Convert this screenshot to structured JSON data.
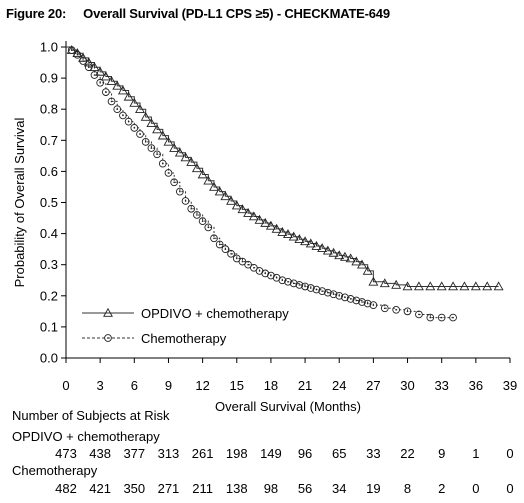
{
  "figure": {
    "title": "Figure 20:     Overall Survival (PD-L1 CPS ≥5) - CHECKMATE-649"
  },
  "chart_data": {
    "type": "line",
    "subtype": "kaplan-meier",
    "xlabel": "Overall Survival (Months)",
    "ylabel": "Probability of Overall Survival",
    "xlim": [
      0,
      39
    ],
    "ylim": [
      0,
      1.0
    ],
    "x_ticks": [
      "0",
      "3",
      "6",
      "9",
      "12",
      "15",
      "18",
      "21",
      "24",
      "27",
      "30",
      "33",
      "36",
      "39"
    ],
    "y_ticks": [
      "0.0",
      "0.1",
      "0.2",
      "0.3",
      "0.4",
      "0.5",
      "0.6",
      "0.7",
      "0.8",
      "0.9",
      "1.0"
    ],
    "legend_position": "bottom-left",
    "series": [
      {
        "name": "OPDIVO + chemotherapy",
        "marker": "triangle",
        "line_style": "solid",
        "x": [
          0,
          0.5,
          1,
          1.5,
          2,
          2.5,
          3,
          3.5,
          4,
          4.5,
          5,
          5.5,
          6,
          6.5,
          7,
          7.5,
          8,
          8.5,
          9,
          9.5,
          10,
          10.5,
          11,
          11.5,
          12,
          12.5,
          13,
          13.5,
          14,
          14.5,
          15,
          15.5,
          16,
          16.5,
          17,
          17.5,
          18,
          18.5,
          19,
          19.5,
          20,
          20.5,
          21,
          21.5,
          22,
          22.5,
          23,
          23.5,
          24,
          24.5,
          25,
          25.5,
          26,
          26.5,
          27,
          28,
          29,
          30,
          31,
          32,
          33,
          34,
          35,
          36,
          37,
          38
        ],
        "y": [
          1.0,
          0.99,
          0.98,
          0.965,
          0.95,
          0.935,
          0.92,
          0.905,
          0.89,
          0.875,
          0.86,
          0.84,
          0.82,
          0.8,
          0.775,
          0.755,
          0.735,
          0.715,
          0.695,
          0.675,
          0.66,
          0.645,
          0.63,
          0.61,
          0.59,
          0.57,
          0.55,
          0.535,
          0.52,
          0.505,
          0.49,
          0.478,
          0.466,
          0.455,
          0.444,
          0.434,
          0.425,
          0.415,
          0.405,
          0.398,
          0.39,
          0.382,
          0.375,
          0.368,
          0.36,
          0.353,
          0.345,
          0.338,
          0.33,
          0.325,
          0.32,
          0.31,
          0.3,
          0.28,
          0.245,
          0.24,
          0.235,
          0.23,
          0.23,
          0.23,
          0.23,
          0.23,
          0.23,
          0.23,
          0.23,
          0.23
        ]
      },
      {
        "name": "Chemotherapy",
        "marker": "circle",
        "line_style": "dashed",
        "x": [
          0,
          0.5,
          1,
          1.5,
          2,
          2.5,
          3,
          3.5,
          4,
          4.5,
          5,
          5.5,
          6,
          6.5,
          7,
          7.5,
          8,
          8.5,
          9,
          9.5,
          10,
          10.5,
          11,
          11.5,
          12,
          12.5,
          13,
          13.5,
          14,
          14.5,
          15,
          15.5,
          16,
          16.5,
          17,
          17.5,
          18,
          18.5,
          19,
          19.5,
          20,
          20.5,
          21,
          21.5,
          22,
          22.5,
          23,
          23.5,
          24,
          24.5,
          25,
          25.5,
          26,
          26.5,
          27,
          28,
          29,
          30,
          31,
          32,
          33,
          34
        ],
        "y": [
          1.0,
          0.99,
          0.975,
          0.955,
          0.935,
          0.91,
          0.885,
          0.855,
          0.825,
          0.8,
          0.78,
          0.76,
          0.74,
          0.72,
          0.695,
          0.675,
          0.655,
          0.625,
          0.595,
          0.565,
          0.535,
          0.505,
          0.48,
          0.46,
          0.44,
          0.42,
          0.385,
          0.365,
          0.35,
          0.335,
          0.32,
          0.31,
          0.3,
          0.29,
          0.28,
          0.272,
          0.265,
          0.258,
          0.25,
          0.245,
          0.24,
          0.235,
          0.23,
          0.225,
          0.22,
          0.215,
          0.21,
          0.205,
          0.2,
          0.195,
          0.19,
          0.185,
          0.18,
          0.175,
          0.17,
          0.16,
          0.155,
          0.15,
          0.14,
          0.13,
          0.13,
          0.13
        ]
      }
    ],
    "risk_table": {
      "header": "Number of Subjects at Risk",
      "groups": [
        {
          "label": "OPDIVO + chemotherapy",
          "values": [
            "473",
            "438",
            "377",
            "313",
            "261",
            "198",
            "149",
            "96",
            "65",
            "33",
            "22",
            "9",
            "1",
            "0"
          ]
        },
        {
          "label": "Chemotherapy",
          "values": [
            "482",
            "421",
            "350",
            "271",
            "211",
            "138",
            "98",
            "56",
            "34",
            "19",
            "8",
            "2",
            "0",
            "0"
          ]
        }
      ]
    }
  }
}
